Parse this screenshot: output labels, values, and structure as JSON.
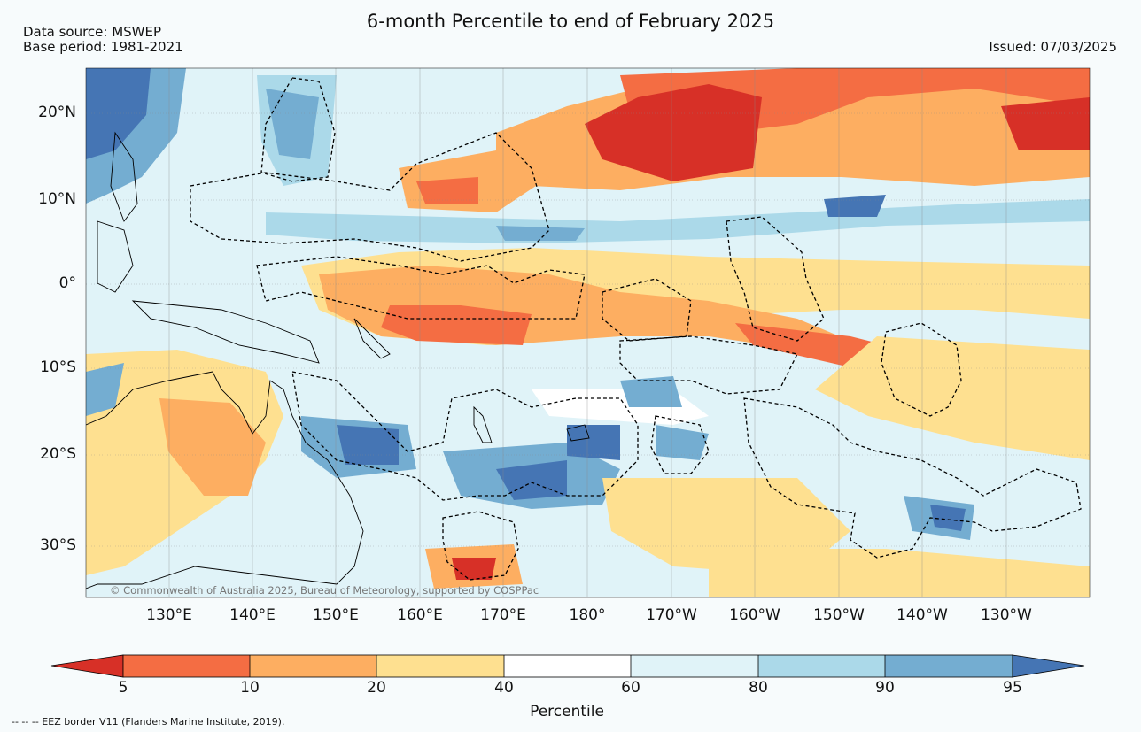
{
  "header": {
    "title": "6-month Percentile to end of February 2025",
    "source": "Data source: MSWEP",
    "base_period": "Base period: 1981-2021",
    "issued": "Issued: 07/03/2025"
  },
  "axes": {
    "lat_labels": [
      "20°N",
      "10°N",
      "0°",
      "10°S",
      "20°S",
      "30°S"
    ],
    "lon_labels": [
      "130°E",
      "140°E",
      "150°E",
      "160°E",
      "170°E",
      "180°",
      "170°W",
      "160°W",
      "150°W",
      "140°W",
      "130°W"
    ]
  },
  "map": {
    "copyright": "© Commonwealth of Australia 2025, Bureau of Meteorology, supported by COSPPac"
  },
  "colorbar": {
    "title": "Percentile",
    "tick_labels": [
      "5",
      "10",
      "20",
      "40",
      "60",
      "80",
      "90",
      "95"
    ],
    "colors": [
      "#d73027",
      "#f46d43",
      "#fdae61",
      "#fee090",
      "#ffffff",
      "#e0f3f8",
      "#abd9e9",
      "#74add1",
      "#4575b4"
    ]
  },
  "footnote": "--  --  -- EEZ border V11 (Flanders Marine Institute, 2019)."
}
